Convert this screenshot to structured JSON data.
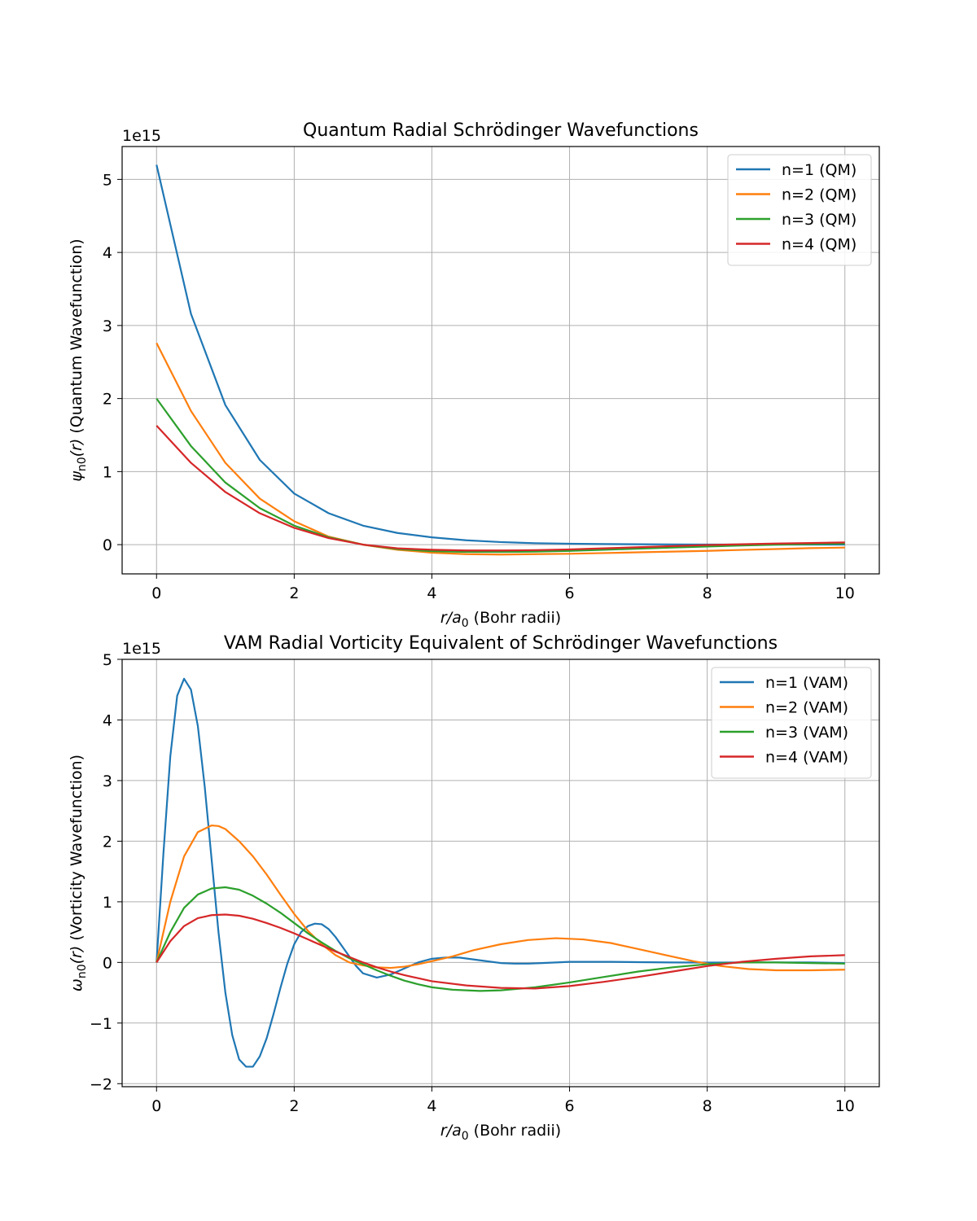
{
  "chart_data": [
    {
      "type": "line",
      "title": "Quantum Radial Schrödinger Wavefunctions",
      "xlabel_var": "r/a",
      "xlabel_sub": "0",
      "xlabel_rest": " (Bohr radii)",
      "ylabel_var": "ψ",
      "ylabel_sub": "n0",
      "ylabel_arg": "(r)",
      "ylabel_rest": " (Quantum Wavefunction)",
      "offset_text": "1e15",
      "xlim": [
        -0.5,
        10.5
      ],
      "ylim": [
        -0.4,
        5.45
      ],
      "xticks": [
        0,
        2,
        4,
        6,
        8,
        10
      ],
      "xtick_labels": [
        "0",
        "2",
        "4",
        "6",
        "8",
        "10"
      ],
      "yticks": [
        0,
        1,
        2,
        3,
        4,
        5
      ],
      "ytick_labels": [
        "0",
        "1",
        "2",
        "3",
        "4",
        "5"
      ],
      "grid": true,
      "legend_position": "top-right",
      "x": [
        0,
        0.5,
        1,
        1.5,
        2,
        2.5,
        3,
        3.5,
        4,
        4.5,
        5,
        5.5,
        6,
        6.5,
        7,
        7.5,
        8,
        8.5,
        9,
        9.5,
        10
      ],
      "series": [
        {
          "name": "n=1 (QM)",
          "color": "#1f77b4",
          "values": [
            5.2,
            3.16,
            1.91,
            1.16,
            0.7,
            0.43,
            0.26,
            0.16,
            0.1,
            0.06,
            0.035,
            0.02,
            0.013,
            0.008,
            0.005,
            0.003,
            0.002,
            0.001,
            0.0007,
            0.0004,
            0.0002
          ]
        },
        {
          "name": "n=2 (QM)",
          "color": "#ff7f0e",
          "values": [
            2.76,
            1.83,
            1.12,
            0.63,
            0.32,
            0.11,
            0.0,
            -0.07,
            -0.11,
            -0.13,
            -0.135,
            -0.13,
            -0.125,
            -0.115,
            -0.105,
            -0.095,
            -0.085,
            -0.072,
            -0.06,
            -0.048,
            -0.04
          ]
        },
        {
          "name": "n=3 (QM)",
          "color": "#2ca02c",
          "values": [
            2.0,
            1.35,
            0.85,
            0.5,
            0.26,
            0.1,
            0.0,
            -0.06,
            -0.09,
            -0.1,
            -0.1,
            -0.095,
            -0.085,
            -0.07,
            -0.055,
            -0.04,
            -0.025,
            -0.012,
            0.0,
            0.008,
            0.015
          ]
        },
        {
          "name": "n=4 (QM)",
          "color": "#d62728",
          "values": [
            1.63,
            1.12,
            0.72,
            0.43,
            0.23,
            0.09,
            0.0,
            -0.05,
            -0.07,
            -0.08,
            -0.08,
            -0.075,
            -0.065,
            -0.05,
            -0.035,
            -0.02,
            -0.005,
            0.005,
            0.015,
            0.022,
            0.03
          ]
        }
      ]
    },
    {
      "type": "line",
      "title": "VAM Radial Vorticity Equivalent of Schrödinger Wavefunctions",
      "xlabel_var": "r/a",
      "xlabel_sub": "0",
      "xlabel_rest": " (Bohr radii)",
      "ylabel_var": "ω",
      "ylabel_sub": "n0",
      "ylabel_arg": "(r)",
      "ylabel_rest": " (Vorticity Wavefunction)",
      "offset_text": "1e15",
      "xlim": [
        -0.5,
        10.5
      ],
      "ylim": [
        -2.05,
        5.0
      ],
      "xticks": [
        0,
        2,
        4,
        6,
        8,
        10
      ],
      "xtick_labels": [
        "0",
        "2",
        "4",
        "6",
        "8",
        "10"
      ],
      "yticks": [
        -2,
        -1,
        0,
        1,
        2,
        3,
        4,
        5
      ],
      "ytick_labels": [
        "−2",
        "−1",
        "0",
        "1",
        "2",
        "3",
        "4",
        "5"
      ],
      "grid": true,
      "legend_position": "top-right",
      "series": [
        {
          "name": "n=1 (VAM)",
          "color": "#1f77b4",
          "x": [
            0,
            0.1,
            0.2,
            0.3,
            0.4,
            0.5,
            0.6,
            0.7,
            0.8,
            0.9,
            1.0,
            1.1,
            1.2,
            1.3,
            1.4,
            1.5,
            1.6,
            1.7,
            1.8,
            1.9,
            2.0,
            2.1,
            2.2,
            2.3,
            2.4,
            2.5,
            2.6,
            2.7,
            2.8,
            2.9,
            3.0,
            3.2,
            3.4,
            3.6,
            3.8,
            4.0,
            4.2,
            4.4,
            4.6,
            4.8,
            5.0,
            5.2,
            5.4,
            5.6,
            5.8,
            6.0,
            6.3,
            6.6,
            7.0,
            7.5,
            8.0,
            8.5,
            9.0,
            9.5,
            10.0
          ],
          "values": [
            0,
            1.8,
            3.4,
            4.4,
            4.68,
            4.5,
            3.9,
            2.9,
            1.7,
            0.5,
            -0.5,
            -1.2,
            -1.6,
            -1.72,
            -1.72,
            -1.55,
            -1.25,
            -0.85,
            -0.42,
            -0.02,
            0.3,
            0.5,
            0.6,
            0.64,
            0.63,
            0.55,
            0.42,
            0.26,
            0.1,
            -0.06,
            -0.18,
            -0.25,
            -0.2,
            -0.1,
            0.0,
            0.06,
            0.08,
            0.08,
            0.05,
            0.02,
            -0.01,
            -0.02,
            -0.02,
            -0.01,
            0.0,
            0.01,
            0.01,
            0.01,
            0.005,
            0.0,
            -0.002,
            0.0,
            0.0,
            0.0,
            -0.01
          ]
        },
        {
          "name": "n=2 (VAM)",
          "color": "#ff7f0e",
          "x": [
            0,
            0.2,
            0.4,
            0.6,
            0.8,
            0.9,
            1.0,
            1.2,
            1.4,
            1.6,
            1.8,
            2.0,
            2.2,
            2.4,
            2.6,
            2.8,
            3.0,
            3.2,
            3.4,
            3.6,
            3.8,
            4.0,
            4.3,
            4.6,
            5.0,
            5.4,
            5.8,
            6.2,
            6.6,
            7.0,
            7.4,
            7.8,
            8.2,
            8.6,
            9.0,
            9.5,
            10.0
          ],
          "values": [
            0,
            1.0,
            1.75,
            2.15,
            2.26,
            2.25,
            2.2,
            2.0,
            1.75,
            1.45,
            1.12,
            0.8,
            0.52,
            0.3,
            0.12,
            0.0,
            -0.05,
            -0.08,
            -0.09,
            -0.07,
            -0.03,
            0.02,
            0.1,
            0.2,
            0.3,
            0.37,
            0.4,
            0.38,
            0.32,
            0.22,
            0.12,
            0.02,
            -0.06,
            -0.11,
            -0.13,
            -0.13,
            -0.12
          ]
        },
        {
          "name": "n=3 (VAM)",
          "color": "#2ca02c",
          "x": [
            0,
            0.2,
            0.4,
            0.6,
            0.8,
            1.0,
            1.2,
            1.4,
            1.6,
            1.8,
            2.0,
            2.2,
            2.4,
            2.6,
            2.8,
            3.0,
            3.2,
            3.4,
            3.6,
            3.8,
            4.0,
            4.3,
            4.7,
            5.0,
            5.5,
            6.0,
            6.5,
            7.0,
            7.5,
            8.0,
            8.5,
            9.0,
            9.5,
            10.0
          ],
          "values": [
            0,
            0.5,
            0.9,
            1.12,
            1.22,
            1.24,
            1.2,
            1.1,
            0.97,
            0.82,
            0.65,
            0.48,
            0.33,
            0.19,
            0.07,
            -0.03,
            -0.13,
            -0.22,
            -0.3,
            -0.36,
            -0.41,
            -0.45,
            -0.47,
            -0.46,
            -0.41,
            -0.33,
            -0.24,
            -0.15,
            -0.08,
            -0.03,
            0.0,
            0.0,
            -0.01,
            -0.02
          ]
        },
        {
          "name": "n=4 (VAM)",
          "color": "#d62728",
          "x": [
            0,
            0.2,
            0.4,
            0.6,
            0.8,
            1.0,
            1.2,
            1.4,
            1.6,
            1.8,
            2.0,
            2.2,
            2.4,
            2.6,
            2.8,
            3.0,
            3.2,
            3.4,
            3.6,
            3.8,
            4.0,
            4.5,
            5.0,
            5.5,
            6.0,
            6.5,
            7.0,
            7.5,
            8.0,
            8.5,
            9.0,
            9.5,
            10.0
          ],
          "values": [
            0,
            0.35,
            0.6,
            0.73,
            0.78,
            0.79,
            0.77,
            0.72,
            0.65,
            0.57,
            0.48,
            0.38,
            0.28,
            0.18,
            0.09,
            0.0,
            -0.08,
            -0.15,
            -0.21,
            -0.26,
            -0.31,
            -0.38,
            -0.42,
            -0.43,
            -0.39,
            -0.32,
            -0.24,
            -0.15,
            -0.06,
            0.01,
            0.06,
            0.1,
            0.12
          ]
        }
      ]
    }
  ]
}
